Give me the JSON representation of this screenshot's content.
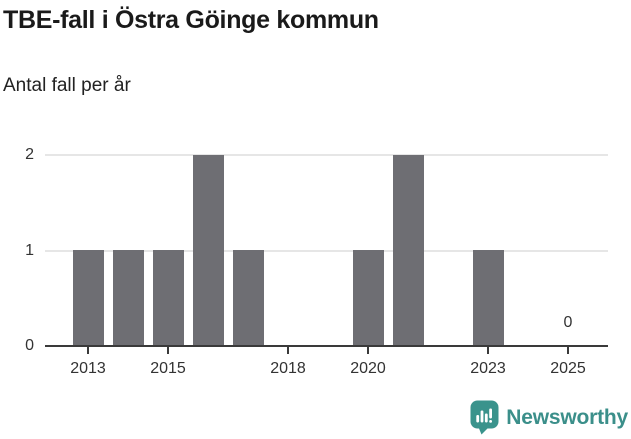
{
  "title": "TBE-fall i Östra Göinge kommun",
  "subtitle": "Antal fall per år",
  "chart_data": {
    "type": "bar",
    "title": "TBE-fall i Östra Göinge kommun",
    "subtitle": "Antal fall per år",
    "categories": [
      2013,
      2014,
      2015,
      2016,
      2017,
      2018,
      2019,
      2020,
      2021,
      2022,
      2023,
      2024,
      2025
    ],
    "values": [
      1,
      1,
      1,
      2,
      1,
      0,
      0,
      1,
      2,
      0,
      1,
      0,
      0
    ],
    "x_tick_labels": [
      "2013",
      "2015",
      "2018",
      "2020",
      "2023",
      "2025"
    ],
    "x_tick_years": [
      2013,
      2015,
      2018,
      2020,
      2023,
      2025
    ],
    "y_tick_labels": [
      "0",
      "1",
      "2"
    ],
    "y_ticks": [
      0,
      1,
      2
    ],
    "ylim": [
      0,
      2
    ],
    "grid": "horizontal",
    "legend": "none",
    "value_labels": [
      {
        "year": 2025,
        "text": "0"
      }
    ]
  },
  "colors": {
    "bar": "#6e6e73",
    "axis": "#3a3a3a",
    "grid": "#e6e6e6",
    "tick_text": "#333333",
    "title_text": "#1a1a1a",
    "accent_teal": "#3a938c",
    "logo_text": "#3b8f8a",
    "background": "#ffffff"
  },
  "branding": {
    "logo_text": "Newsworthy",
    "icon": "newsworthy-speech-bubble-bar-chart-icon"
  }
}
